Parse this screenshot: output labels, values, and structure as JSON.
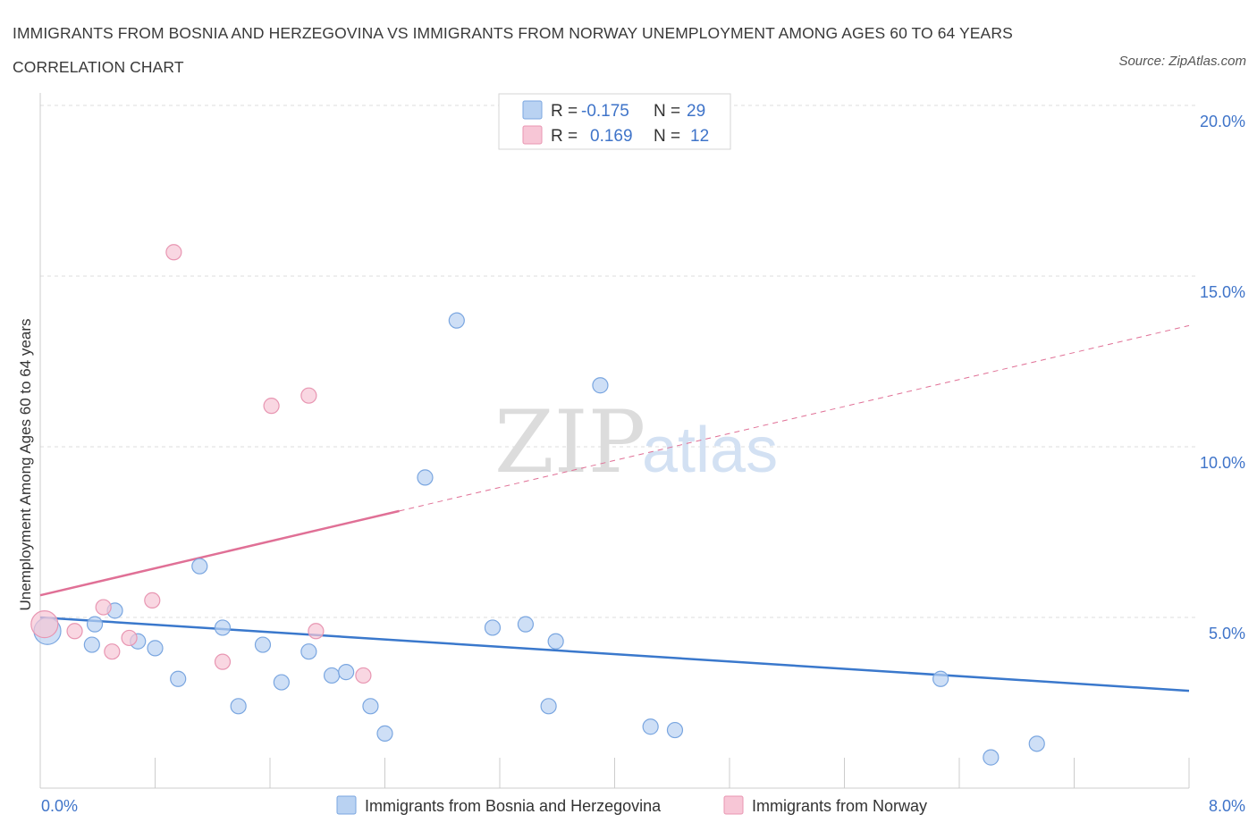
{
  "title": "IMMIGRANTS FROM BOSNIA AND HERZEGOVINA VS IMMIGRANTS FROM NORWAY UNEMPLOYMENT AMONG AGES 60 TO 64 YEARS CORRELATION CHART",
  "source": "Source: ZipAtlas.com",
  "watermark": {
    "zip": "ZIP",
    "atlas": "atlas"
  },
  "colors": {
    "blue_fill": "#b9d2f2",
    "blue_line": "#3a78cc",
    "pink_fill": "#f7c6d6",
    "pink_line": "#e07096",
    "label": "#3f74c9",
    "grid": "#dddddd"
  },
  "legend": {
    "rows": [
      {
        "r_label": "R =",
        "r_value": "-0.175",
        "n_label": "N =",
        "n_value": "29"
      },
      {
        "r_label": "R =",
        "r_value": "0.169",
        "n_label": "N =",
        "n_value": "12"
      }
    ]
  },
  "chart_data": {
    "type": "scatter",
    "title": "IMMIGRANTS FROM BOSNIA AND HERZEGOVINA VS IMMIGRANTS FROM NORWAY UNEMPLOYMENT AMONG AGES 60 TO 64 YEARS CORRELATION CHART",
    "xlabel": "",
    "ylabel": "Unemployment Among Ages 60 to 64 years",
    "xlim": [
      0,
      8
    ],
    "ylim": [
      0,
      20
    ],
    "x_tick_labels": [
      "0.0%",
      "8.0%"
    ],
    "y_ticks": [
      5,
      10,
      15,
      20
    ],
    "y_tick_labels": [
      "5.0%",
      "10.0%",
      "15.0%",
      "20.0%"
    ],
    "grid": true,
    "series": [
      {
        "name": "Immigrants from Bosnia and Herzegovina",
        "color": "#b9d2f2",
        "stroke": "#7aa6e0",
        "points": [
          [
            0.05,
            4.6
          ],
          [
            0.38,
            4.8
          ],
          [
            0.36,
            4.2
          ],
          [
            0.52,
            5.2
          ],
          [
            0.68,
            4.3
          ],
          [
            0.8,
            4.1
          ],
          [
            0.96,
            3.2
          ],
          [
            1.11,
            6.5
          ],
          [
            1.27,
            4.7
          ],
          [
            1.38,
            2.4
          ],
          [
            1.55,
            4.2
          ],
          [
            1.68,
            3.1
          ],
          [
            1.87,
            4.0
          ],
          [
            2.03,
            3.3
          ],
          [
            2.13,
            3.4
          ],
          [
            2.3,
            2.4
          ],
          [
            2.4,
            1.6
          ],
          [
            2.68,
            9.1
          ],
          [
            2.9,
            13.7
          ],
          [
            3.15,
            4.7
          ],
          [
            3.38,
            4.8
          ],
          [
            3.54,
            2.4
          ],
          [
            3.59,
            4.3
          ],
          [
            3.9,
            11.8
          ],
          [
            4.25,
            1.8
          ],
          [
            4.42,
            1.7
          ],
          [
            6.27,
            3.2
          ],
          [
            6.62,
            0.9
          ],
          [
            6.94,
            1.3
          ]
        ],
        "trend": {
          "x0": 0.0,
          "y0": 5.0,
          "x1": 8.0,
          "y1": 2.85
        }
      },
      {
        "name": "Immigrants from Norway",
        "color": "#f7c6d6",
        "stroke": "#e896b2",
        "points": [
          [
            0.03,
            4.8
          ],
          [
            0.24,
            4.6
          ],
          [
            0.44,
            5.3
          ],
          [
            0.62,
            4.4
          ],
          [
            0.78,
            5.5
          ],
          [
            0.93,
            15.7
          ],
          [
            1.27,
            3.7
          ],
          [
            1.61,
            11.2
          ],
          [
            1.87,
            11.5
          ],
          [
            1.92,
            4.6
          ],
          [
            2.25,
            3.3
          ],
          [
            0.5,
            4.0
          ]
        ],
        "trend": {
          "x0": 0.0,
          "y0": 5.65,
          "x1": 8.0,
          "y1": 13.55,
          "solid_until_x": 2.5
        }
      }
    ]
  }
}
